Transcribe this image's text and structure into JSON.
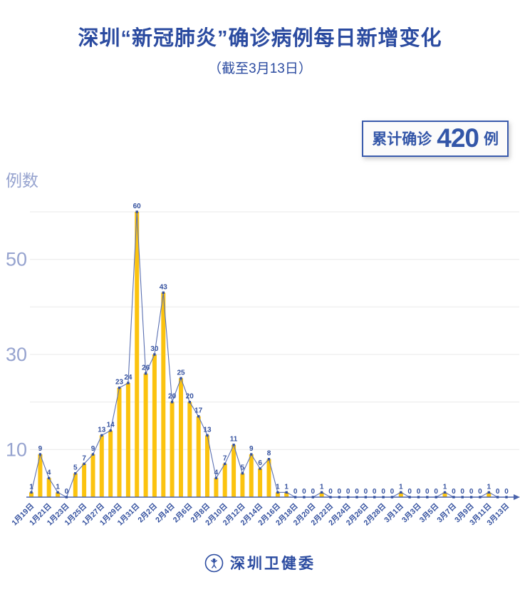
{
  "header": {
    "title": "深圳“新冠肺炎”确诊病例每日新增变化",
    "subtitle": "（截至3月13日）",
    "badge": {
      "prefix": "累计确诊",
      "value": "420",
      "suffix": "例"
    }
  },
  "chart_data": {
    "type": "bar",
    "overlay": "line",
    "title": "深圳“新冠肺炎”确诊病例每日新增变化（截至3月13日）",
    "ylabel": "例数",
    "xlabel": "",
    "ylim": [
      0,
      60
    ],
    "grid": true,
    "gridline_step": 10,
    "yticks_labeled": [
      10,
      30,
      50
    ],
    "xticks_shown_every": 2,
    "total": 420,
    "categories": [
      "1月19日",
      "1月20日",
      "1月21日",
      "1月22日",
      "1月23日",
      "1月24日",
      "1月25日",
      "1月26日",
      "1月27日",
      "1月28日",
      "1月29日",
      "1月30日",
      "1月31日",
      "2月1日",
      "2月2日",
      "2月3日",
      "2月4日",
      "2月5日",
      "2月6日",
      "2月7日",
      "2月8日",
      "2月9日",
      "2月10日",
      "2月11日",
      "2月12日",
      "2月13日",
      "2月14日",
      "2月15日",
      "2月16日",
      "2月17日",
      "2月18日",
      "2月19日",
      "2月20日",
      "2月21日",
      "2月22日",
      "2月23日",
      "2月24日",
      "2月25日",
      "2月26日",
      "2月27日",
      "2月28日",
      "2月29日",
      "3月1日",
      "3月2日",
      "3月3日",
      "3月4日",
      "3月5日",
      "3月6日",
      "3月7日",
      "3月8日",
      "3月9日",
      "3月10日",
      "3月11日",
      "3月12日",
      "3月13日"
    ],
    "values": [
      1,
      9,
      4,
      1,
      0,
      5,
      7,
      9,
      13,
      14,
      23,
      24,
      60,
      26,
      30,
      43,
      20,
      25,
      20,
      17,
      13,
      4,
      7,
      11,
      5,
      9,
      6,
      8,
      1,
      1,
      0,
      0,
      0,
      1,
      0,
      0,
      0,
      0,
      0,
      0,
      0,
      0,
      1,
      0,
      0,
      0,
      0,
      1,
      0,
      0,
      0,
      0,
      1,
      0,
      0
    ]
  },
  "footer": {
    "brand": "深圳卫健委",
    "logo_icon": "health-commission-emblem"
  },
  "colors": {
    "title_blue": "#2B4BA0",
    "axis_light_blue": "#96A3CF",
    "marker_navy": "#34519F",
    "line_blue": "#5B70B2",
    "bar_yellow": "#FBC30F",
    "grid_gray": "#E9E9E9",
    "axis_blue": "#4A63AC",
    "badge_border": "#3A5BAD",
    "badge_text": "#3356A8",
    "badge_bg": "#FBFBFB"
  }
}
